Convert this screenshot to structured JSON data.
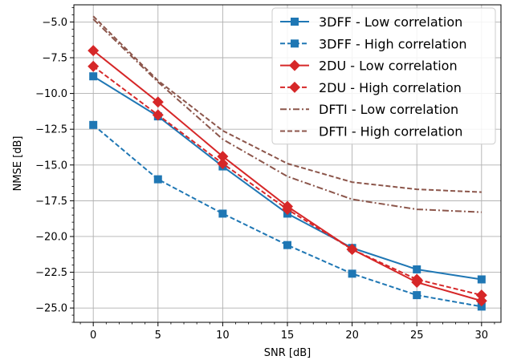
{
  "chart_data": {
    "type": "line",
    "xlabel": "SNR [dB]",
    "ylabel": "NMSE [dB]",
    "x": [
      0,
      5,
      10,
      15,
      20,
      25,
      30
    ],
    "xlim": [
      -1.5,
      31.5
    ],
    "ylim": [
      -26.0,
      -3.8
    ],
    "xticks": [
      0,
      5,
      10,
      15,
      20,
      25,
      30
    ],
    "xtick_labels": [
      "0",
      "5",
      "10",
      "15",
      "20",
      "25",
      "30"
    ],
    "yticks": [
      -25.0,
      -22.5,
      -20.0,
      -17.5,
      -15.0,
      -12.5,
      -10.0,
      -7.5,
      -5.0
    ],
    "ytick_labels": [
      "−25.0",
      "−22.5",
      "−20.0",
      "−17.5",
      "−15.0",
      "−12.5",
      "−10.0",
      "−7.5",
      "−5.0"
    ],
    "grid": true,
    "legend_position": "top-right",
    "series": [
      {
        "name": "3DFF - Low correlation",
        "color": "#1f77b4",
        "dash": "solid",
        "marker": "square",
        "values": [
          -8.8,
          -11.6,
          -15.1,
          -18.4,
          -20.8,
          -22.3,
          -23.0
        ]
      },
      {
        "name": "3DFF - High correlation",
        "color": "#1f77b4",
        "dash": "dashed",
        "marker": "square",
        "values": [
          -12.2,
          -16.0,
          -18.4,
          -20.6,
          -22.6,
          -24.1,
          -24.9
        ]
      },
      {
        "name": "2DU - Low correlation",
        "color": "#d62728",
        "dash": "solid",
        "marker": "diamond",
        "values": [
          -7.0,
          -10.6,
          -14.4,
          -17.9,
          -20.9,
          -23.2,
          -24.5
        ]
      },
      {
        "name": "2DU - High correlation",
        "color": "#d62728",
        "dash": "dashed",
        "marker": "diamond",
        "values": [
          -8.1,
          -11.5,
          -14.9,
          -18.1,
          -20.9,
          -23.0,
          -24.1
        ]
      },
      {
        "name": "DFTI - Low correlation",
        "color": "#8c564b",
        "dash": "dashdot",
        "marker": "none",
        "values": [
          -4.8,
          -9.2,
          -13.2,
          -15.8,
          -17.4,
          -18.1,
          -18.3
        ]
      },
      {
        "name": "DFTI - High correlation",
        "color": "#8c564b",
        "dash": "dashed",
        "marker": "none",
        "values": [
          -4.6,
          -9.1,
          -12.6,
          -14.9,
          -16.2,
          -16.7,
          -16.9
        ]
      }
    ]
  }
}
